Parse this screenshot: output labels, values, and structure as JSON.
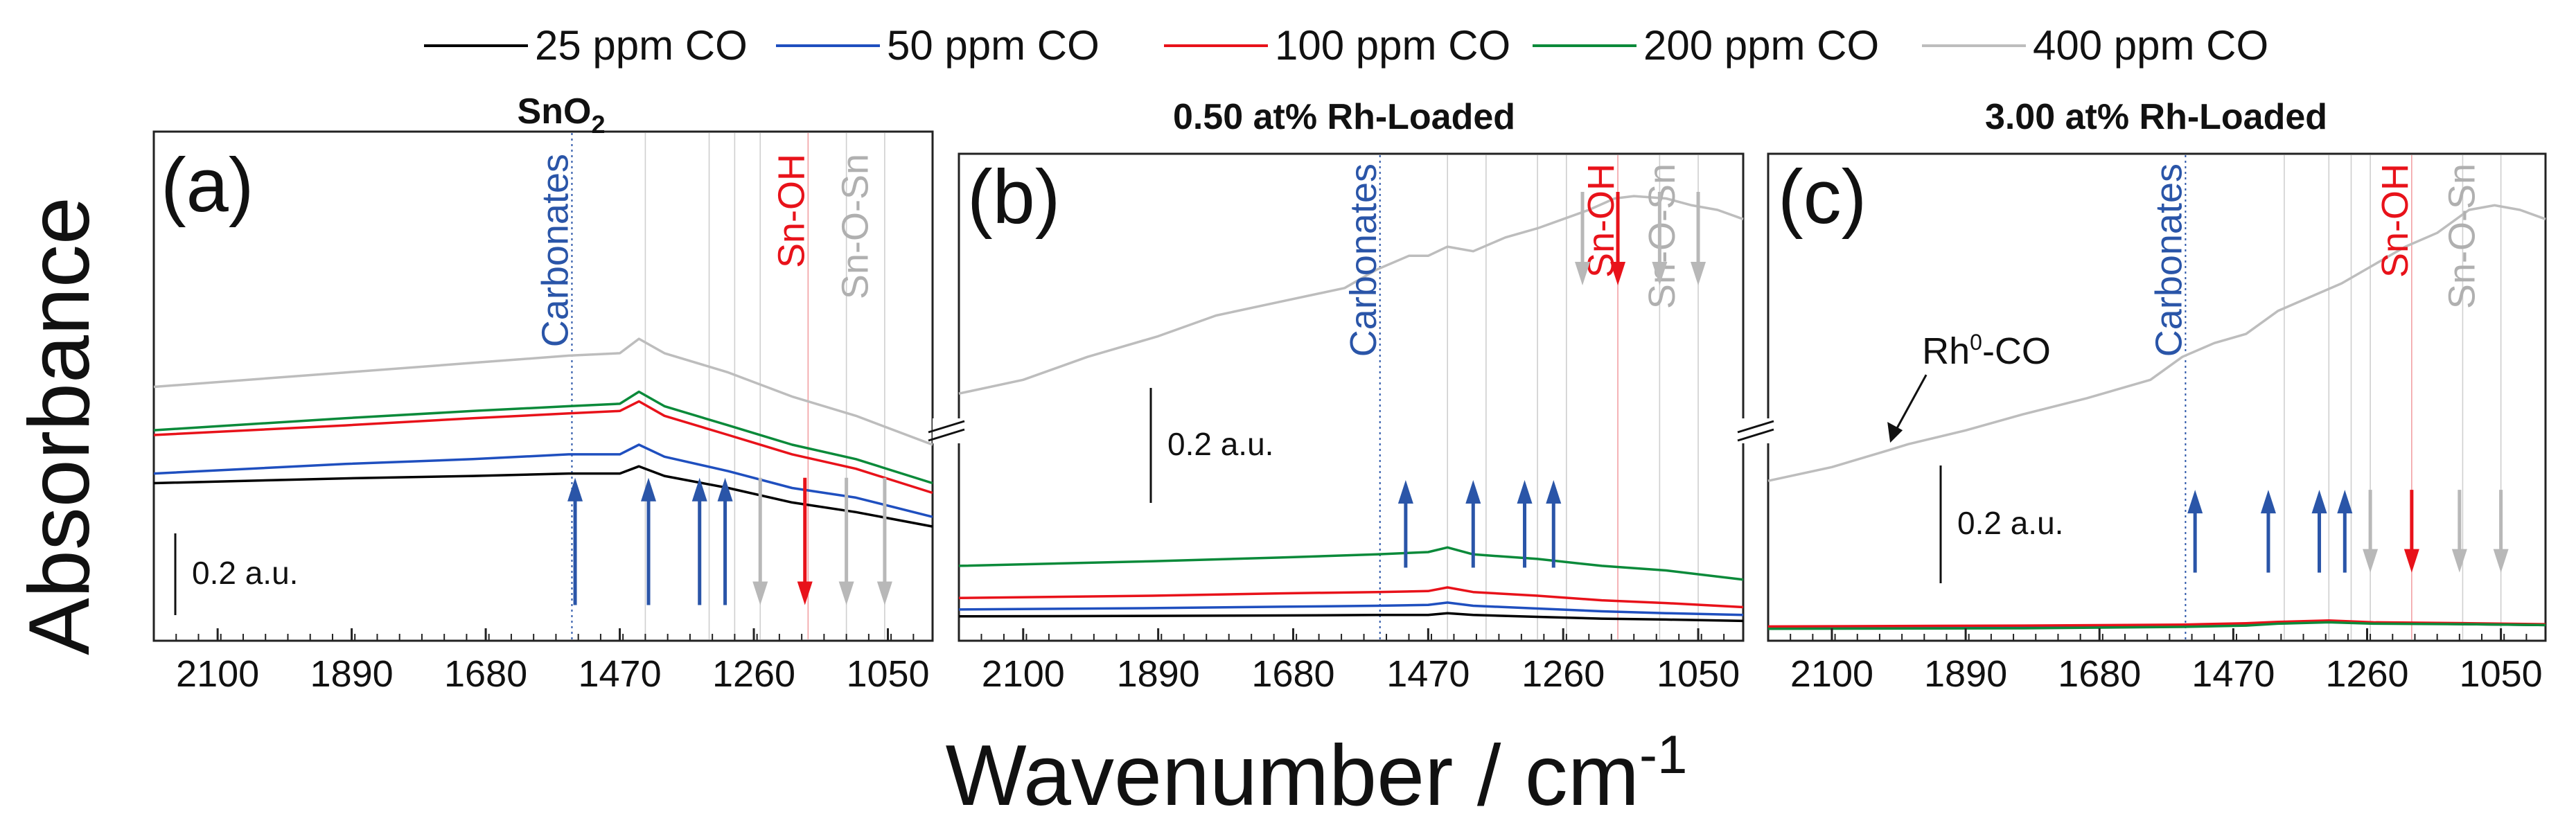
{
  "chart_data": {
    "type": "line",
    "xlabel": "Wavenumber / cm-1",
    "xlabel_main": "Wavenumber / cm",
    "xlabel_sup": "-1",
    "ylabel": "Absorbance",
    "xlim": [
      2200,
      980
    ],
    "xticks": [
      2100,
      1890,
      1680,
      1470,
      1260,
      1050
    ],
    "xtick_labels": [
      "2100",
      "1890",
      "1680",
      "1470",
      "1260",
      "1050"
    ],
    "colors": {
      "25 ppm CO": "#000000",
      "50 ppm CO": "#1f4fbf",
      "100 ppm CO": "#e8121a",
      "200 ppm CO": "#0b8a3a",
      "400 ppm CO": "#bdbdbd",
      "arrow_up": "#2a55a8",
      "arrow_red": "#e8121a",
      "arrow_gray": "#b8b8b8",
      "carbonates_text": "#2a55a8",
      "snoh_text": "#e8121a",
      "snosn_text": "#b0b0b0"
    },
    "legend": [
      "25 ppm CO",
      "50 ppm CO",
      "100 ppm CO",
      "200 ppm CO",
      "400 ppm CO"
    ],
    "panels": [
      {
        "letter": "(a)",
        "title_main": "SnO",
        "title_sub": "2",
        "ylim": [
          0,
          1.0
        ],
        "scale_bar_label": "0.2 a.u.",
        "scale_bar_value": 0.2,
        "annotations": [
          {
            "text": "Carbonates",
            "x": 1545,
            "color": "carbonates_text"
          },
          {
            "text": "Sn-OH",
            "x": 1175,
            "color": "snoh_text"
          },
          {
            "text": "Sn-O-Sn",
            "x": 1075,
            "color": "snosn_text"
          }
        ],
        "guide_lines": [
          1545,
          1430,
          1330,
          1290,
          1250,
          1175,
          1115,
          1055
        ],
        "arrows": [
          {
            "x": 1540,
            "dir": "up",
            "color": "arrow_up"
          },
          {
            "x": 1425,
            "dir": "up",
            "color": "arrow_up"
          },
          {
            "x": 1345,
            "dir": "up",
            "color": "arrow_up"
          },
          {
            "x": 1305,
            "dir": "up",
            "color": "arrow_up"
          },
          {
            "x": 1250,
            "dir": "down",
            "color": "arrow_gray"
          },
          {
            "x": 1180,
            "dir": "down",
            "color": "arrow_red"
          },
          {
            "x": 1115,
            "dir": "down",
            "color": "arrow_gray"
          },
          {
            "x": 1055,
            "dir": "down",
            "color": "arrow_gray"
          }
        ],
        "series": [
          {
            "name": "25 ppm CO",
            "x": [
              2200,
              1900,
              1700,
              1550,
              1470,
              1440,
              1400,
              1300,
              1200,
              1100,
              980
            ],
            "y": [
              0.31,
              0.32,
              0.325,
              0.33,
              0.33,
              0.345,
              0.325,
              0.3,
              0.27,
              0.25,
              0.22
            ]
          },
          {
            "name": "50 ppm CO",
            "x": [
              2200,
              1900,
              1700,
              1550,
              1470,
              1440,
              1400,
              1300,
              1200,
              1100,
              980
            ],
            "y": [
              0.33,
              0.35,
              0.36,
              0.37,
              0.37,
              0.39,
              0.365,
              0.335,
              0.3,
              0.28,
              0.24
            ]
          },
          {
            "name": "100 ppm CO",
            "x": [
              2200,
              1900,
              1700,
              1550,
              1470,
              1440,
              1400,
              1300,
              1200,
              1100,
              980
            ],
            "y": [
              0.41,
              0.43,
              0.445,
              0.455,
              0.46,
              0.48,
              0.45,
              0.41,
              0.37,
              0.34,
              0.29
            ]
          },
          {
            "name": "200 ppm CO",
            "x": [
              2200,
              1900,
              1700,
              1550,
              1470,
              1440,
              1400,
              1300,
              1200,
              1100,
              980
            ],
            "y": [
              0.42,
              0.445,
              0.46,
              0.47,
              0.475,
              0.5,
              0.47,
              0.43,
              0.39,
              0.36,
              0.31
            ]
          },
          {
            "name": "400 ppm CO",
            "x": [
              2200,
              1900,
              1700,
              1550,
              1470,
              1440,
              1400,
              1300,
              1200,
              1100,
              980
            ],
            "y": [
              0.51,
              0.54,
              0.56,
              0.575,
              0.58,
              0.61,
              0.58,
              0.54,
              0.49,
              0.45,
              0.39
            ]
          }
        ]
      },
      {
        "letter": "(b)",
        "title_main": "0.50 at% Rh-Loaded",
        "title_sub": "",
        "ylim": [
          0,
          1.0
        ],
        "scale_bar_label": "0.2 a.u.",
        "scale_bar_value": 0.2,
        "annotations": [
          {
            "text": "Carbonates",
            "x": 1545,
            "color": "carbonates_text"
          },
          {
            "text": "Sn-OH",
            "x": 1175,
            "color": "snoh_text"
          },
          {
            "text": "Sn-O-Sn",
            "x": 1080,
            "color": "snosn_text"
          }
        ],
        "guide_lines": [
          1545,
          1440,
          1380,
          1300,
          1255,
          1175,
          1110,
          1050
        ],
        "arrows": [
          {
            "x": 1505,
            "dir": "up",
            "color": "arrow_up"
          },
          {
            "x": 1400,
            "dir": "up",
            "color": "arrow_up"
          },
          {
            "x": 1320,
            "dir": "up",
            "color": "arrow_up"
          },
          {
            "x": 1275,
            "dir": "up",
            "color": "arrow_up"
          },
          {
            "x": 1230,
            "dir": "down",
            "color": "arrow_gray"
          },
          {
            "x": 1175,
            "dir": "down",
            "color": "arrow_red"
          },
          {
            "x": 1110,
            "dir": "down",
            "color": "arrow_gray"
          },
          {
            "x": 1050,
            "dir": "down",
            "color": "arrow_gray"
          }
        ],
        "series": [
          {
            "name": "25 ppm CO",
            "x": [
              2200,
              1900,
              1700,
              1550,
              1470,
              1440,
              1400,
              1300,
              1200,
              1100,
              980
            ],
            "y": [
              0.035,
              0.036,
              0.037,
              0.038,
              0.038,
              0.042,
              0.038,
              0.034,
              0.03,
              0.028,
              0.025
            ]
          },
          {
            "name": "50 ppm CO",
            "x": [
              2200,
              1900,
              1700,
              1550,
              1470,
              1440,
              1400,
              1300,
              1200,
              1100,
              980
            ],
            "y": [
              0.05,
              0.053,
              0.056,
              0.058,
              0.06,
              0.065,
              0.058,
              0.052,
              0.046,
              0.042,
              0.038
            ]
          },
          {
            "name": "100 ppm CO",
            "x": [
              2200,
              1900,
              1700,
              1550,
              1470,
              1440,
              1400,
              1300,
              1200,
              1100,
              980
            ],
            "y": [
              0.075,
              0.08,
              0.085,
              0.088,
              0.09,
              0.098,
              0.088,
              0.08,
              0.07,
              0.064,
              0.055
            ]
          },
          {
            "name": "200 ppm CO",
            "x": [
              2200,
              1900,
              1700,
              1550,
              1470,
              1440,
              1400,
              1300,
              1200,
              1100,
              980
            ],
            "y": [
              0.145,
              0.155,
              0.163,
              0.17,
              0.175,
              0.185,
              0.17,
              0.16,
              0.145,
              0.135,
              0.115
            ]
          },
          {
            "name": "400 ppm CO",
            "x": [
              2200,
              2100,
              2000,
              1890,
              1800,
              1700,
              1600,
              1550,
              1500,
              1470,
              1440,
              1400,
              1350,
              1300,
              1260,
              1220,
              1180,
              1150,
              1100,
              1060,
              1020,
              980
            ],
            "y": [
              0.52,
              0.55,
              0.6,
              0.645,
              0.69,
              0.72,
              0.75,
              0.79,
              0.82,
              0.82,
              0.84,
              0.83,
              0.86,
              0.88,
              0.9,
              0.92,
              0.945,
              0.95,
              0.945,
              0.93,
              0.92,
              0.9
            ]
          }
        ]
      },
      {
        "letter": "(c)",
        "title_main": "3.00 at% Rh-Loaded",
        "title_sub": "",
        "ylim": [
          0,
          1.0
        ],
        "scale_bar_label": "0.2 a.u.",
        "scale_bar_value": 0.2,
        "rh_label_main": "Rh",
        "rh_label_sup": "0",
        "rh_label_rest": "-CO",
        "rh_label_x": 2015,
        "annotations": [
          {
            "text": "Carbonates",
            "x": 1545,
            "color": "carbonates_text"
          },
          {
            "text": "Sn-OH",
            "x": 1190,
            "color": "snoh_text"
          },
          {
            "text": "Sn-O-Sn",
            "x": 1085,
            "color": "snosn_text"
          }
        ],
        "guide_lines": [
          1545,
          1390,
          1320,
          1285,
          1255,
          1190,
          1110,
          1050
        ],
        "arrows": [
          {
            "x": 1530,
            "dir": "up",
            "color": "arrow_up"
          },
          {
            "x": 1415,
            "dir": "up",
            "color": "arrow_up"
          },
          {
            "x": 1335,
            "dir": "up",
            "color": "arrow_up"
          },
          {
            "x": 1295,
            "dir": "up",
            "color": "arrow_up"
          },
          {
            "x": 1255,
            "dir": "down",
            "color": "arrow_gray"
          },
          {
            "x": 1190,
            "dir": "down",
            "color": "arrow_red"
          },
          {
            "x": 1115,
            "dir": "down",
            "color": "arrow_gray"
          },
          {
            "x": 1050,
            "dir": "down",
            "color": "arrow_gray"
          }
        ],
        "series": [
          {
            "name": "25 ppm CO",
            "x": [
              2200,
              1800,
              1550,
              1450,
              1400,
              1320,
              1250,
              1100,
              980
            ],
            "y": [
              0.01,
              0.012,
              0.014,
              0.016,
              0.02,
              0.024,
              0.02,
              0.018,
              0.016
            ]
          },
          {
            "name": "50 ppm CO",
            "x": [
              2200,
              1800,
              1550,
              1450,
              1400,
              1320,
              1250,
              1100,
              980
            ],
            "y": [
              0.012,
              0.014,
              0.016,
              0.018,
              0.021,
              0.025,
              0.021,
              0.019,
              0.017
            ]
          },
          {
            "name": "100 ppm CO",
            "x": [
              2200,
              1800,
              1550,
              1450,
              1400,
              1320,
              1250,
              1100,
              980
            ],
            "y": [
              0.013,
              0.015,
              0.017,
              0.02,
              0.023,
              0.026,
              0.022,
              0.02,
              0.018
            ]
          },
          {
            "name": "200 ppm CO",
            "x": [
              2200,
              1800,
              1550,
              1450,
              1400,
              1320,
              1250,
              1100,
              980
            ],
            "y": [
              0.008,
              0.009,
              0.012,
              0.015,
              0.019,
              0.022,
              0.019,
              0.018,
              0.016
            ]
          },
          {
            "name": "400 ppm CO",
            "x": [
              2200,
              2100,
              2015,
              1980,
              1890,
              1800,
              1700,
              1600,
              1550,
              1500,
              1450,
              1400,
              1350,
              1300,
              1250,
              1200,
              1150,
              1100,
              1060,
              1020,
              980
            ],
            "y": [
              0.33,
              0.36,
              0.395,
              0.41,
              0.44,
              0.475,
              0.51,
              0.55,
              0.6,
              0.63,
              0.65,
              0.7,
              0.73,
              0.76,
              0.8,
              0.84,
              0.87,
              0.92,
              0.93,
              0.92,
              0.9
            ]
          }
        ]
      }
    ]
  }
}
